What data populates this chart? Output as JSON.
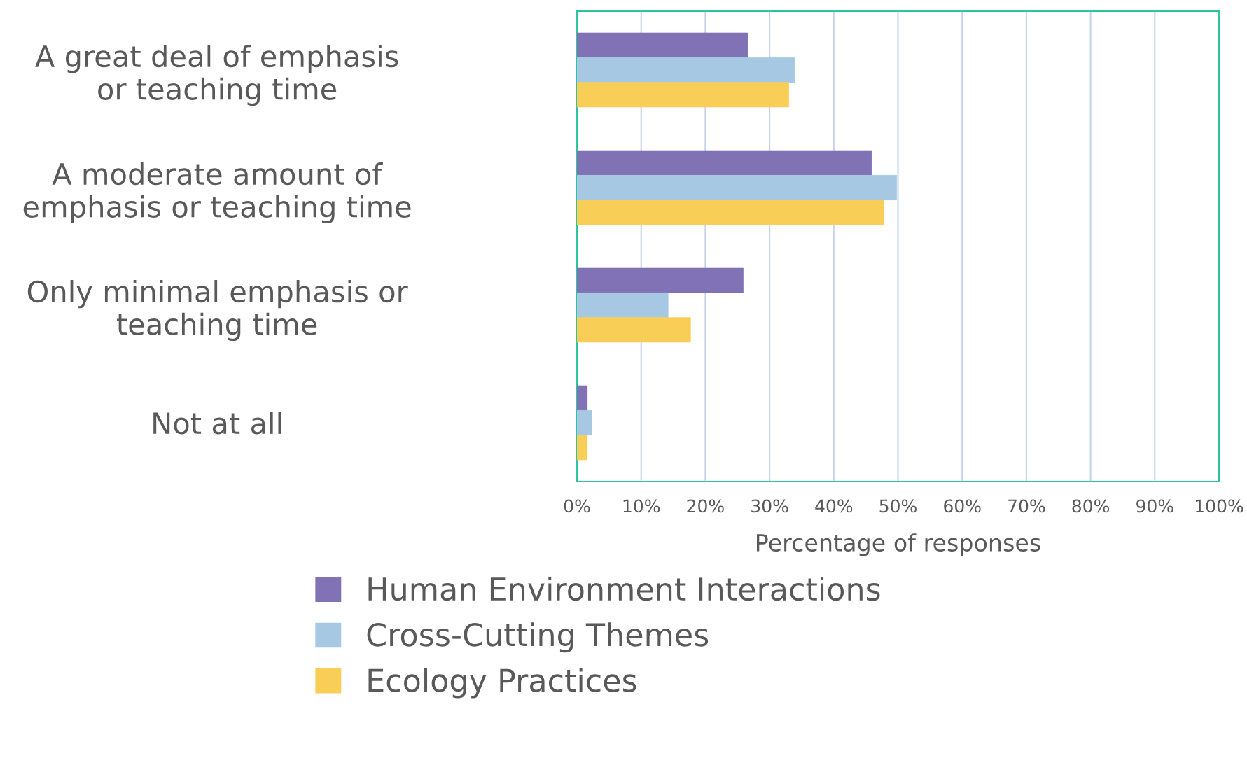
{
  "chart_data": {
    "type": "bar",
    "orientation": "horizontal",
    "categories": [
      "A great deal of emphasis or teaching time",
      "A moderate amount of emphasis or teaching time",
      "Only minimal emphasis or teaching time",
      "Not at all"
    ],
    "series": [
      {
        "name": "Human Environment Interactions",
        "color": "#8172b5",
        "values": [
          26.6,
          45.9,
          25.9,
          1.6
        ]
      },
      {
        "name": "Cross-Cutting Themes",
        "color": "#a7c8e3",
        "values": [
          33.9,
          49.8,
          14.2,
          2.3
        ]
      },
      {
        "name": "Ecology Practices",
        "color": "#f9ce57",
        "values": [
          33.0,
          47.8,
          17.7,
          1.6
        ]
      }
    ],
    "xlabel": "Percentage of responses",
    "xlim": [
      0,
      100
    ],
    "xticks": [
      {
        "value": 0,
        "label": "0%"
      },
      {
        "value": 10,
        "label": "10%"
      },
      {
        "value": 20,
        "label": "20%"
      },
      {
        "value": 30,
        "label": "30%"
      },
      {
        "value": 40,
        "label": "40%"
      },
      {
        "value": 50,
        "label": "50%"
      },
      {
        "value": 60,
        "label": "60%"
      },
      {
        "value": 70,
        "label": "70%"
      },
      {
        "value": 80,
        "label": "80%"
      },
      {
        "value": 90,
        "label": "90%"
      },
      {
        "value": 100,
        "label": "100%"
      }
    ],
    "grid": "x",
    "legend": "bottom"
  }
}
